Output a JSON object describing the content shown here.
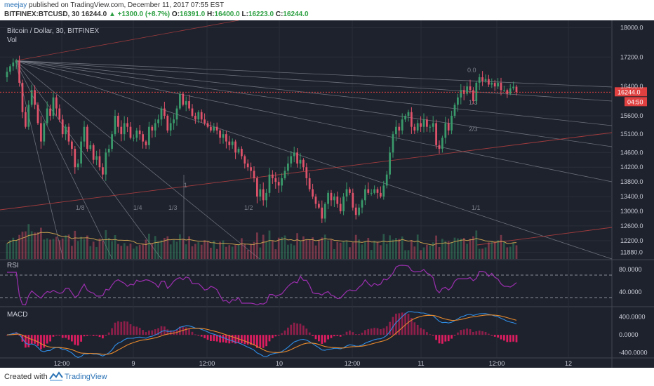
{
  "header": {
    "author": "meejay",
    "published_text": "published on TradingView.com, December 11, 2017 07:55 EST",
    "symbol": "BITFINEX:BTCUSD, 30",
    "last": "16244.0",
    "change": "+1300.0 (+8.7%)",
    "o_label": "O:",
    "o": "16391.0",
    "h_label": "H:",
    "h": "16400.0",
    "l_label": "L:",
    "l": "16223.0",
    "c_label": "C:",
    "c": "16244.0"
  },
  "footer": {
    "created_with": "Created with",
    "brand": "TradingView"
  },
  "colors": {
    "background": "#1e222d",
    "up": "#3a9a6b",
    "down": "#e0536a",
    "rsi": "#9b2fae",
    "macd_line": "#2f8de4",
    "signal_line": "#e88a2c",
    "histogram": "#e91e63",
    "price_line": "#e04040",
    "vol_ma": "#c8a050",
    "fan": "#8a8f99",
    "trend": "#b94040"
  },
  "chart_data": [
    {
      "type": "candlestick",
      "title": "Bitcoin / Dollar, 30, BITFINEX",
      "volume_label": "Vol",
      "ylim": [
        11700,
        18200
      ],
      "y_ticks": [
        "18000.0",
        "17200.0",
        "16400.0",
        "15600.0",
        "15100.0",
        "14600.0",
        "14200.0",
        "13800.0",
        "13400.0",
        "13000.0",
        "12600.0",
        "12200.0",
        "11880.0"
      ],
      "last_price": "16244.0",
      "countdown": "04:50",
      "x_tick_labels": [
        "12:00",
        "9",
        "12:00",
        "10",
        "12:00",
        "11",
        "12:00",
        "12"
      ],
      "close": [
        16800,
        16950,
        17050,
        17100,
        16500,
        15700,
        15300,
        15900,
        16300,
        15900,
        15400,
        14900,
        15400,
        15800,
        15600,
        16100,
        15800,
        15500,
        15100,
        15300,
        14900,
        14700,
        14200,
        14300,
        14900,
        15300,
        14700,
        14800,
        14400,
        14500,
        14200,
        14000,
        14600,
        14700,
        15100,
        15600,
        15300,
        15100,
        15400,
        15300,
        15000,
        15000,
        15200,
        15100,
        14900,
        14800,
        15300,
        15200,
        15400,
        15500,
        15800,
        15600,
        15200,
        15400,
        15500,
        15800,
        16200,
        15900,
        16000,
        15800,
        15600,
        15500,
        15700,
        15500,
        15400,
        15300,
        15200,
        15300,
        15200,
        15000,
        15100,
        14900,
        14800,
        14900,
        14600,
        14700,
        14500,
        14300,
        14200,
        14100,
        13900,
        13400,
        13600,
        13300,
        13500,
        14000,
        13900,
        13800,
        13700,
        13900,
        14100,
        14300,
        14500,
        14600,
        14300,
        14400,
        14200,
        13900,
        13600,
        13400,
        13200,
        13100,
        12800,
        13200,
        13500,
        13300,
        13400,
        13200,
        13000,
        13400,
        13600,
        13500,
        13100,
        12900,
        13100,
        13300,
        13600,
        13500,
        13500,
        13600,
        13500,
        13400,
        13700,
        14000,
        14600,
        15100,
        15300,
        15200,
        15500,
        15600,
        15700,
        15300,
        15200,
        15400,
        15300,
        15500,
        15300,
        15300,
        15400,
        14800,
        14700,
        15000,
        15400,
        15200,
        15600,
        15900,
        16100,
        16300,
        16200,
        16400,
        16300,
        16000,
        16500,
        16650,
        16550,
        16600,
        16450,
        16500,
        16400,
        16500,
        16300,
        16300,
        16200,
        16350,
        16391,
        16244
      ],
      "rsi": {
        "label": "RSI",
        "y_ticks": [
          "80.0000",
          "40.0000"
        ],
        "bands": [
          70,
          30
        ]
      },
      "macd": {
        "label": "MACD",
        "y_ticks": [
          "400.0000",
          "0.0000",
          "-400.0000"
        ]
      },
      "fan_labels": [
        "1/8",
        "1/4",
        "1/3",
        "1/2",
        "1",
        "1/1",
        "2/3",
        "1/3",
        "0.0"
      ],
      "annotation_label": "1"
    }
  ]
}
